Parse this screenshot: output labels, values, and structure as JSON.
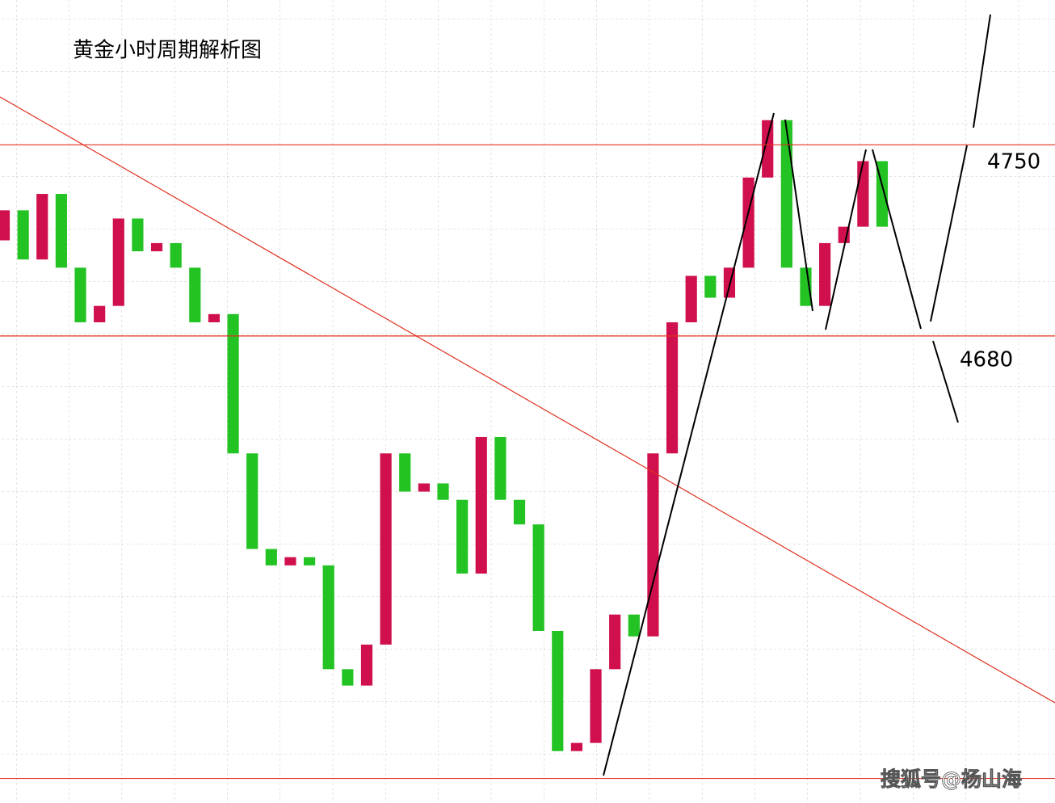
{
  "chart_data": {
    "type": "candlestick",
    "title": "黄金小时周期解析图",
    "watermark": "搜狐号@杨山海",
    "up_color": "#d0104c",
    "down_color": "#22c322",
    "open": [
      4715,
      4726,
      4708,
      4732,
      4705,
      4685,
      4691,
      4723,
      4711,
      4714,
      4705,
      4685,
      4688,
      4637,
      4602,
      4596,
      4599,
      4596,
      4558,
      4552,
      4567,
      4637,
      4623,
      4626,
      4620,
      4593,
      4643,
      4620,
      4611,
      4572,
      4528,
      4531,
      4558,
      4578,
      4570,
      4637,
      4685,
      4702,
      4694,
      4705,
      4738,
      4759,
      4705,
      4691,
      4714,
      4720,
      4744
    ],
    "close": [
      4726,
      4708,
      4732,
      4705,
      4685,
      4691,
      4723,
      4711,
      4714,
      4705,
      4685,
      4688,
      4637,
      4602,
      4596,
      4599,
      4596,
      4558,
      4552,
      4567,
      4637,
      4623,
      4626,
      4620,
      4593,
      4643,
      4620,
      4611,
      4572,
      4528,
      4531,
      4558,
      4578,
      4570,
      4637,
      4685,
      4702,
      4694,
      4705,
      4738,
      4759,
      4705,
      4691,
      4714,
      4720,
      4744,
      4720
    ],
    "ylim": [
      4509,
      4803
    ],
    "levels": [
      4750,
      4680
    ],
    "support": 4518
  }
}
